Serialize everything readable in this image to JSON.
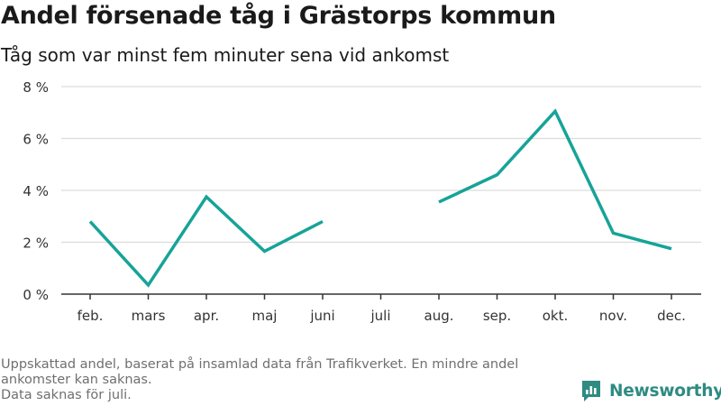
{
  "title": "Andel försenade tåg i Grästorps kommun",
  "subtitle": "Tåg som var minst fem minuter sena vid ankomst",
  "footnote_lines": [
    "Uppskattad andel, baserat på insamlad data från Trafikverket. En mindre andel",
    "ankomster kan saknas.",
    "Data saknas för juli."
  ],
  "brand": "Newsworthy",
  "colors": {
    "line": "#17a398",
    "grid": "#dcdcdc",
    "axis": "#333333",
    "brand": "#2e8b82"
  },
  "chart_data": {
    "type": "line",
    "categories": [
      "feb.",
      "mars",
      "apr.",
      "maj",
      "juni",
      "juli",
      "aug.",
      "sep.",
      "okt.",
      "nov.",
      "dec."
    ],
    "series": [
      {
        "values": [
          2.8,
          0.35,
          3.75,
          1.65,
          2.8,
          null,
          3.55,
          4.6,
          7.05,
          2.35,
          1.75
        ]
      }
    ],
    "ylim": [
      0,
      8
    ],
    "yticks": [
      0,
      2,
      4,
      6,
      8
    ],
    "ytick_labels": [
      "0 %",
      "2 %",
      "4 %",
      "6 %",
      "8 %"
    ],
    "grid": true
  }
}
